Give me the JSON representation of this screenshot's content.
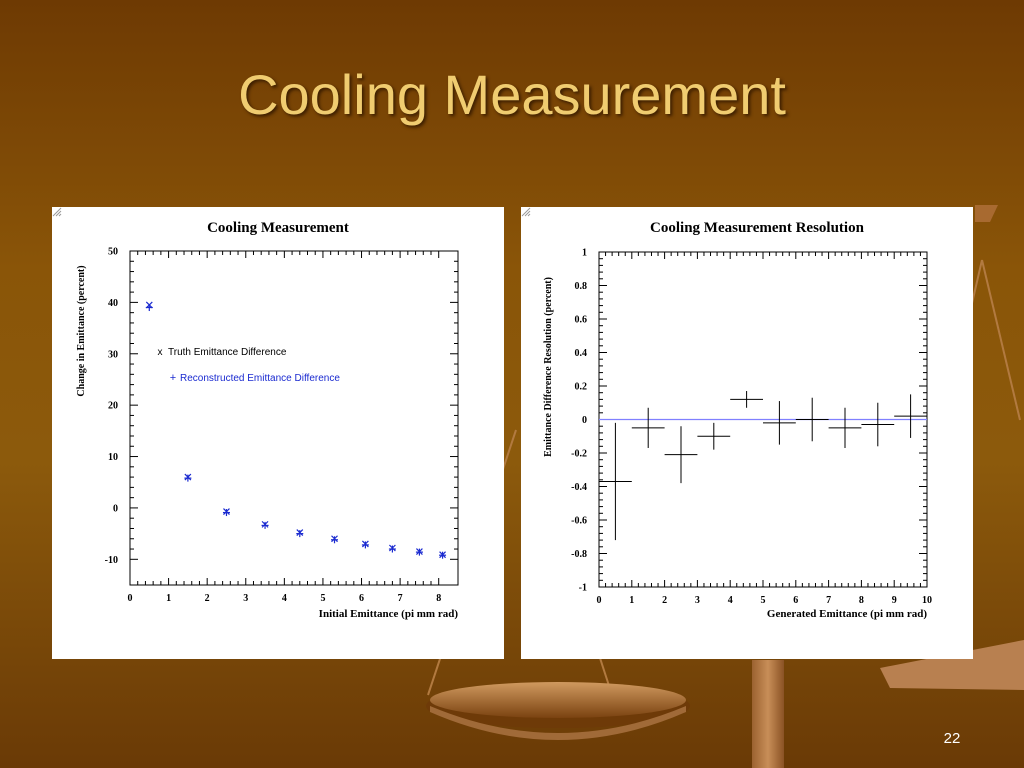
{
  "slide": {
    "title": "Cooling Measurement",
    "page_number": "22"
  },
  "colors": {
    "background": "#8a5508",
    "title": "#f0cc70",
    "reconstructed": "#1a2ad0",
    "zero_line": "#8080ff"
  },
  "chart_data": [
    {
      "type": "scatter",
      "title": "Cooling Measurement",
      "xlabel": "Initial Emittance (pi mm rad)",
      "ylabel": "Change in Emittance (percent)",
      "xlim": [
        0,
        8.5
      ],
      "ylim": [
        -15,
        50
      ],
      "x_ticks": [
        0,
        1,
        2,
        3,
        4,
        5,
        6,
        7,
        8
      ],
      "y_ticks": [
        -10,
        0,
        10,
        20,
        30,
        40,
        50
      ],
      "grid": false,
      "legend": [
        {
          "marker": "x",
          "label": "Truth Emittance Difference",
          "color": "#000000"
        },
        {
          "marker": "+",
          "label": "Reconstructed Emittance Difference",
          "color": "#1a2ad0"
        }
      ],
      "legend_placement": "upper-middle",
      "series": [
        {
          "name": "Truth Emittance Difference",
          "marker": "x",
          "x": [
            0.5,
            1.5,
            2.5,
            3.5,
            4.4,
            5.3,
            6.1,
            6.8,
            7.5,
            8.1
          ],
          "y": [
            39.5,
            6,
            -0.7,
            -3.2,
            -4.8,
            -6,
            -7,
            -7.8,
            -8.5,
            -9.1
          ]
        },
        {
          "name": "Reconstructed Emittance Difference",
          "marker": "+",
          "x": [
            0.5,
            1.5,
            2.5,
            3.5,
            4.4,
            5.3,
            6.1,
            6.8,
            7.5,
            8.1
          ],
          "y": [
            39,
            5.8,
            -0.9,
            -3.4,
            -5,
            -6.2,
            -7.2,
            -8,
            -8.6,
            -9.2
          ]
        }
      ]
    },
    {
      "type": "scatter",
      "title": "Cooling Measurement Resolution",
      "xlabel": "Generated Emittance (pi mm rad)",
      "ylabel": "Emittance Difference Resolution (percent)",
      "xlim": [
        0,
        10
      ],
      "ylim": [
        -1,
        1
      ],
      "x_ticks": [
        0,
        1,
        2,
        3,
        4,
        5,
        6,
        7,
        8,
        9,
        10
      ],
      "y_ticks": [
        -1,
        -0.8,
        -0.6,
        -0.4,
        -0.2,
        0,
        0.2,
        0.4,
        0.6,
        0.8,
        1
      ],
      "grid": false,
      "reference_line_y": 0,
      "series": [
        {
          "name": "",
          "marker": "crosshair",
          "x": [
            0.5,
            1.5,
            2.5,
            3.5,
            4.5,
            5.5,
            6.5,
            7.5,
            8.5,
            9.5
          ],
          "x_err": [
            0.5,
            0.5,
            0.5,
            0.5,
            0.5,
            0.5,
            0.5,
            0.5,
            0.5,
            0.5
          ],
          "y": [
            -0.37,
            -0.05,
            -0.21,
            -0.1,
            0.12,
            -0.02,
            0,
            -0.05,
            -0.03,
            0.02
          ],
          "y_err": [
            0.35,
            0.12,
            0.17,
            0.08,
            0.05,
            0.13,
            0.13,
            0.12,
            0.13,
            0.13
          ]
        }
      ]
    }
  ]
}
